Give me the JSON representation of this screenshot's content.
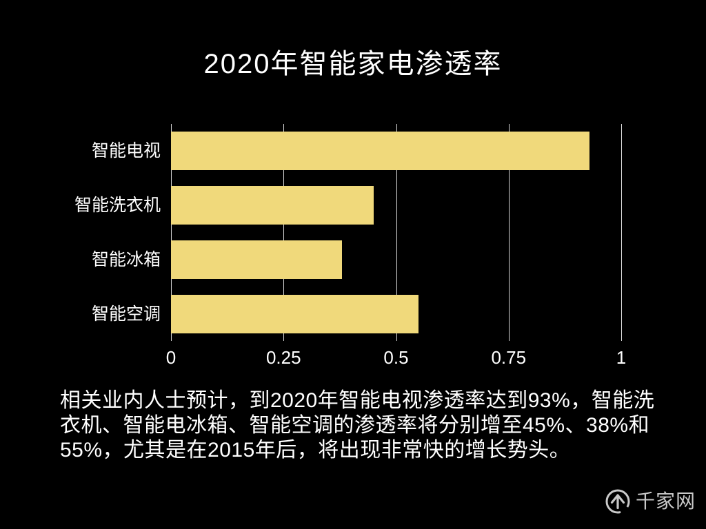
{
  "title": "2020年智能家电渗透率",
  "chart_data": {
    "type": "bar",
    "orientation": "horizontal",
    "title": "2020年智能家电渗透率",
    "categories": [
      "智能电视",
      "智能洗衣机",
      "智能冰箱",
      "智能空调"
    ],
    "values": [
      0.93,
      0.45,
      0.38,
      0.55
    ],
    "xlabel": "",
    "ylabel": "",
    "xlim": [
      0,
      1
    ],
    "xticks": [
      0,
      0.25,
      0.5,
      0.75,
      1
    ],
    "xtick_labels": [
      "0",
      "0.25",
      "0.5",
      "0.75",
      "1"
    ],
    "grid": true,
    "legend": false,
    "bar_color": "#f0d97b",
    "grid_color": "#d9d9d9",
    "text_color": "#ffffff",
    "background_color": "#000000"
  },
  "caption": {
    "full_text": "相关业内人士预计，到2020年智能电视渗透率达到93%，智能洗衣机、智能电冰箱、智能空调的渗透率将分别增至45%、38%和55%，尤其是在2015年后，将出现非常快的增长势头。",
    "lines": [
      "相关业内人士预计，到2020年智能电视渗透率达到93%，智能洗",
      "衣机、智能电冰箱、智能空调的渗透率将分别增至45%、38%和",
      "55%，尤其是在2015年后，将出现非常快的增长势头。"
    ]
  },
  "logo": {
    "text": "千家网",
    "icon": "up-arrow-circle-icon",
    "color": "#c9c9c9"
  }
}
